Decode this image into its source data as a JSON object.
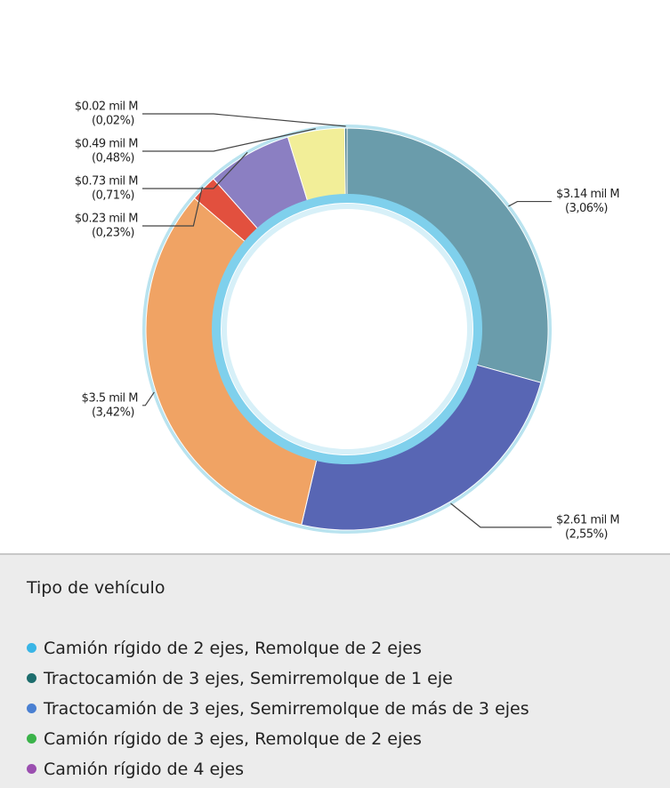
{
  "chart_data": {
    "type": "donut",
    "categories": [
      null,
      null,
      null,
      null,
      null,
      null,
      null
    ],
    "values": [
      3.14,
      2.61,
      3.5,
      0.23,
      0.73,
      0.49,
      0.02
    ],
    "value_labels": [
      "$3.14 mil M",
      "$2.61 mil M",
      "$3.5 mil M",
      "$0.23 mil M",
      "$0.73 mil M",
      "$0.49 mil M",
      "$0.02 mil M"
    ],
    "percents": [
      3.06,
      2.55,
      3.42,
      0.23,
      0.71,
      0.48,
      0.02
    ],
    "percent_labels": [
      "(3,06%)",
      "(2,55%)",
      "(3,42%)",
      "(0,23%)",
      "(0,71%)",
      "(0,48%)",
      "(0,02%)"
    ],
    "colors": [
      "#6a9cab",
      "#5866b4",
      "#f0a364",
      "#e2503e",
      "#8b7fc2",
      "#f2ee98",
      "#3f7684"
    ]
  },
  "legend": {
    "title": "Tipo de vehículo",
    "items": [
      {
        "label": "Camión rígido de 2 ejes, Remolque de 2 ejes",
        "color": "#3ab5e6"
      },
      {
        "label": "Tractocamión de 3 ejes, Semirremolque de 1 eje",
        "color": "#1d6d6d"
      },
      {
        "label": "Tractocamión de 3 ejes, Semirremolque de más de 3 ejes",
        "color": "#4a80d2"
      },
      {
        "label": "Camión rígido de 3 ejes, Remolque de 2 ejes",
        "color": "#3bb34a"
      },
      {
        "label": "Camión rígido de 4 ejes",
        "color": "#9b4fb0"
      }
    ]
  }
}
